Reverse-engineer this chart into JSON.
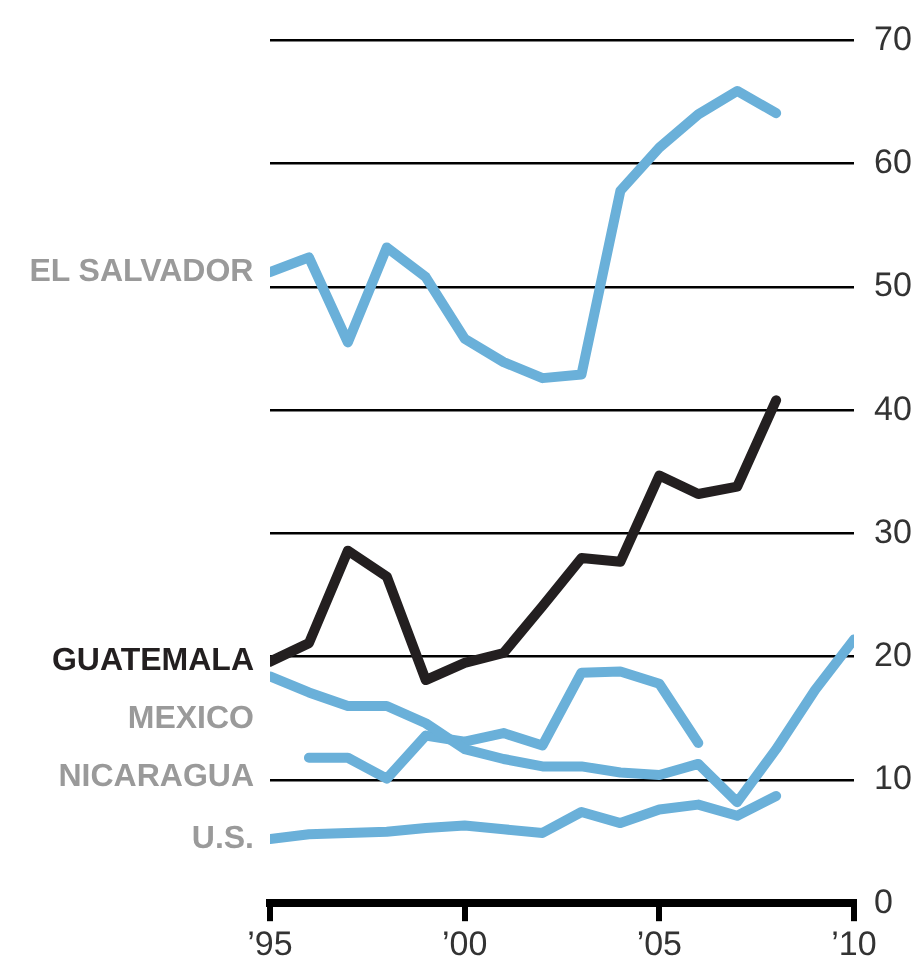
{
  "chart_data": {
    "type": "line",
    "x": [
      1995,
      1996,
      1997,
      1998,
      1999,
      2000,
      2001,
      2002,
      2003,
      2004,
      2005,
      2006,
      2007,
      2008,
      2009,
      2010
    ],
    "xlim": [
      1995,
      2010
    ],
    "xticks": [
      {
        "value": 1995,
        "label": "’95"
      },
      {
        "value": 2000,
        "label": "’00"
      },
      {
        "value": 2005,
        "label": "’05"
      },
      {
        "value": 2010,
        "label": "’10"
      }
    ],
    "ylim": [
      0,
      70
    ],
    "yticks": [
      0,
      10,
      20,
      30,
      40,
      50,
      60,
      70
    ],
    "grid": "y",
    "legend": false,
    "marker": "none",
    "line_style": "solid",
    "series": [
      {
        "name": "EL SALVADOR",
        "color": "#6ab0d9",
        "values": [
          51.2,
          52.4,
          45.5,
          53.2,
          50.8,
          45.8,
          43.9,
          42.6,
          42.9,
          57.8,
          61.3,
          64,
          65.9,
          64.1,
          null,
          null
        ]
      },
      {
        "name": "GUATEMALA",
        "color": "#231f20",
        "values": [
          19.6,
          21.1,
          28.6,
          26.5,
          18.1,
          19.5,
          20.3,
          24.1,
          28,
          27.7,
          34.7,
          33.2,
          33.8,
          40.8,
          null,
          null
        ]
      },
      {
        "name": "MEXICO",
        "color": "#6ab0d9",
        "values": [
          18.4,
          17.1,
          16,
          16,
          14.6,
          12.5,
          11.7,
          11.1,
          11.1,
          10.6,
          10.4,
          11.3,
          8.2,
          12.5,
          17.3,
          21.4
        ]
      },
      {
        "name": "NICARAGUA",
        "color": "#6ab0d9",
        "values": [
          null,
          11.8,
          11.8,
          10.1,
          13.6,
          13.1,
          13.8,
          12.8,
          18.7,
          18.8,
          17.8,
          13,
          null,
          null,
          null,
          null
        ]
      },
      {
        "name": "U.S.",
        "color": "#6ab0d9",
        "values": [
          5.2,
          5.6,
          5.7,
          5.8,
          6.1,
          6.3,
          6,
          5.7,
          7.4,
          6.5,
          7.6,
          8,
          7.1,
          8.7,
          null,
          null
        ]
      }
    ]
  }
}
